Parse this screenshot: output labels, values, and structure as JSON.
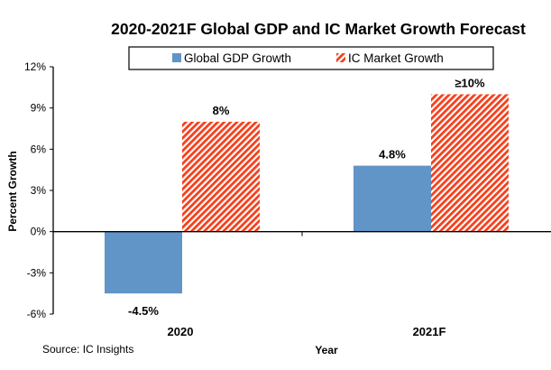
{
  "chart_data": {
    "type": "bar",
    "title": "2020-2021F Global GDP and IC Market Growth Forecast",
    "categories": [
      "2020",
      "2021F"
    ],
    "series": [
      {
        "name": "Global GDP Growth",
        "values": [
          -4.5,
          4.8
        ],
        "labels": [
          "-4.5%",
          "4.8%"
        ],
        "color": "#6194c7",
        "pattern": "solid"
      },
      {
        "name": "IC Market Growth",
        "values": [
          8,
          10
        ],
        "labels": [
          "8%",
          "≥10%"
        ],
        "color": "#f5401c",
        "pattern": "diagonal-stripes"
      }
    ],
    "xlabel": "Year",
    "ylabel": "Percent Growth",
    "ylim": [
      -6,
      12
    ],
    "yticks": [
      12,
      9,
      6,
      3,
      0,
      -3,
      -6
    ],
    "ytick_labels": [
      "12%",
      "9%",
      "6%",
      "3%",
      "0%",
      "-3%",
      "-6%"
    ],
    "grid": false,
    "legend": "top-center",
    "source": "Source: IC Insights"
  }
}
